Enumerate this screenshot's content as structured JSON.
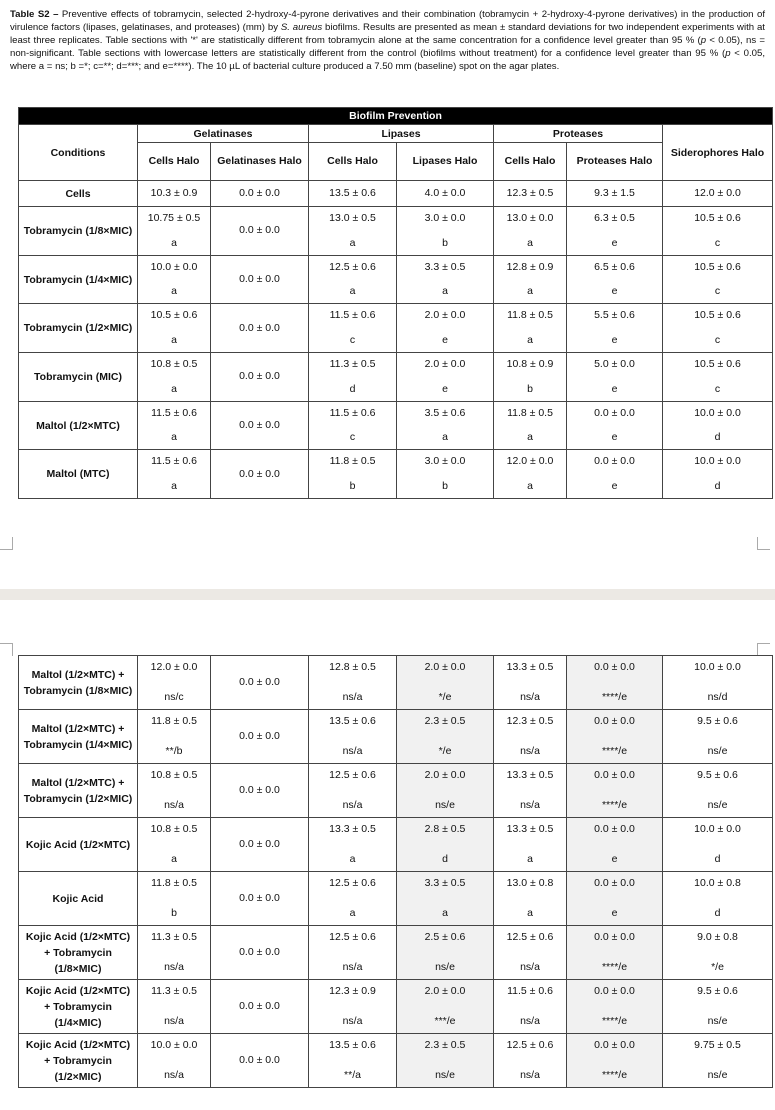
{
  "caption": {
    "label": "Table S2 –",
    "parts": [
      " Preventive effects of tobramycin, selected 2-hydroxy-4-pyrone derivatives and their combination (tobramycin + 2-hydroxy-4-pyrone derivatives) in the production of virulence factors (lipases, gelatinases, and proteases) (mm) by ",
      "S. aureus",
      " biofilms. Results are presented as mean ± standard deviations for two independent experiments with at least three replicates. Table sections with '*' are statistically different from tobramycin alone at the same concentration for a confidence level greater than 95 % (",
      "p",
      " < 0.05), ns = non-significant. Table sections with lowercase letters are statistically different from the control (biofilms without treatment) for a confidence level greater than 95 % (",
      "p",
      " < 0.05, where a = ns; b =*; c=**; d=***; and e=****). The 10 µL of bacterial culture produced a 7.50 mm (baseline) spot on the agar plates."
    ]
  },
  "header": {
    "title": "Biofilm Prevention",
    "conditions": "Conditions",
    "groups": [
      "Gelatinases",
      "Lipases",
      "Proteases"
    ],
    "subcolumns": [
      "Cells Halo",
      "Gelatinases Halo",
      "Cells Halo",
      "Lipases Halo",
      "Cells Halo",
      "Proteases Halo"
    ],
    "siderophores": "Siderophores Halo"
  },
  "tables": [
    {
      "rows": [
        {
          "condition": "Cells",
          "cells": [
            {
              "value": "10.3 ± 0.9"
            },
            {
              "value": "0.0 ± 0.0"
            },
            {
              "value": "13.5 ± 0.6"
            },
            {
              "value": "4.0 ± 0.0"
            },
            {
              "value": "12.3 ± 0.5"
            },
            {
              "value": "9.3 ± 1.5"
            },
            {
              "value": "12.0 ± 0.0"
            }
          ]
        },
        {
          "condition": "Tobramycin (1/8×MIC)",
          "cells": [
            {
              "value": "10.75 ± 0.5",
              "note": "a"
            },
            {
              "value": "0.0 ± 0.0"
            },
            {
              "value": "13.0 ± 0.5",
              "note": "a"
            },
            {
              "value": "3.0 ± 0.0",
              "note": "b"
            },
            {
              "value": "13.0 ± 0.0",
              "note": "a"
            },
            {
              "value": "6.3 ± 0.5",
              "note": "e"
            },
            {
              "value": "10.5 ± 0.6",
              "note": "c"
            }
          ]
        },
        {
          "condition": "Tobramycin (1/4×MIC)",
          "cells": [
            {
              "value": "10.0 ± 0.0",
              "note": "a"
            },
            {
              "value": "0.0 ± 0.0"
            },
            {
              "value": "12.5 ± 0.6",
              "note": "a"
            },
            {
              "value": "3.3 ± 0.5",
              "note": "a"
            },
            {
              "value": "12.8 ± 0.9",
              "note": "a"
            },
            {
              "value": "6.5 ± 0.6",
              "note": "e"
            },
            {
              "value": "10.5 ± 0.6",
              "note": "c"
            }
          ]
        },
        {
          "condition": "Tobramycin (1/2×MIC)",
          "cells": [
            {
              "value": "10.5 ± 0.6",
              "note": "a"
            },
            {
              "value": "0.0 ± 0.0"
            },
            {
              "value": "11.5 ± 0.6",
              "note": "c"
            },
            {
              "value": "2.0 ± 0.0",
              "note": "e"
            },
            {
              "value": "11.8 ± 0.5",
              "note": "a"
            },
            {
              "value": "5.5 ± 0.6",
              "note": "e"
            },
            {
              "value": "10.5 ± 0.6",
              "note": "c"
            }
          ]
        },
        {
          "condition": "Tobramycin (MIC)",
          "cells": [
            {
              "value": "10.8 ± 0.5",
              "note": "a"
            },
            {
              "value": "0.0 ± 0.0"
            },
            {
              "value": "11.3 ± 0.5",
              "note": "d"
            },
            {
              "value": "2.0 ± 0.0",
              "note": "e"
            },
            {
              "value": "10.8 ± 0.9",
              "note": "b"
            },
            {
              "value": "5.0 ± 0.0",
              "note": "e"
            },
            {
              "value": "10.5 ± 0.6",
              "note": "c"
            }
          ]
        },
        {
          "condition": "Maltol (1/2×MTC)",
          "cells": [
            {
              "value": "11.5 ± 0.6",
              "note": "a"
            },
            {
              "value": "0.0 ± 0.0"
            },
            {
              "value": "11.5 ± 0.6",
              "note": "c"
            },
            {
              "value": "3.5 ± 0.6",
              "note": "a"
            },
            {
              "value": "11.8 ± 0.5",
              "note": "a"
            },
            {
              "value": "0.0 ± 0.0",
              "note": "e"
            },
            {
              "value": "10.0 ± 0.0",
              "note": "d"
            }
          ]
        },
        {
          "condition": "Maltol (MTC)",
          "cells": [
            {
              "value": "11.5 ± 0.6",
              "note": "a"
            },
            {
              "value": "0.0 ± 0.0"
            },
            {
              "value": "11.8 ± 0.5",
              "note": "b"
            },
            {
              "value": "3.0 ± 0.0",
              "note": "b"
            },
            {
              "value": "12.0 ± 0.0",
              "note": "a"
            },
            {
              "value": "0.0 ± 0.0",
              "note": "e"
            },
            {
              "value": "10.0 ± 0.0",
              "note": "d"
            }
          ]
        }
      ]
    },
    {
      "rows": [
        {
          "condition": "Maltol (1/2×MTC) + Tobramycin (1/8×MIC)",
          "cells": [
            {
              "value": "12.0 ± 0.0",
              "note": "ns/c"
            },
            {
              "value": "0.0 ± 0.0"
            },
            {
              "value": "12.8 ± 0.5",
              "note": "ns/a"
            },
            {
              "value": "2.0 ± 0.0",
              "note": "*/e"
            },
            {
              "value": "13.3 ± 0.5",
              "note": "ns/a"
            },
            {
              "value": "0.0 ± 0.0",
              "note": "****/e"
            },
            {
              "value": "10.0 ± 0.0",
              "note": "ns/d"
            }
          ]
        },
        {
          "condition": "Maltol (1/2×MTC) + Tobramycin (1/4×MIC)",
          "cells": [
            {
              "value": "11.8 ± 0.5",
              "note": "**/b"
            },
            {
              "value": "0.0 ± 0.0"
            },
            {
              "value": "13.5 ± 0.6",
              "note": "ns/a"
            },
            {
              "value": "2.3 ± 0.5",
              "note": "*/e"
            },
            {
              "value": "12.3 ± 0.5",
              "note": "ns/a"
            },
            {
              "value": "0.0 ± 0.0",
              "note": "****/e"
            },
            {
              "value": "9.5 ± 0.6",
              "note": "ns/e"
            }
          ]
        },
        {
          "condition": "Maltol (1/2×MTC) + Tobramycin (1/2×MIC)",
          "cells": [
            {
              "value": "10.8 ± 0.5",
              "note": "ns/a"
            },
            {
              "value": "0.0 ± 0.0"
            },
            {
              "value": "12.5 ± 0.6",
              "note": "ns/a"
            },
            {
              "value": "2.0 ± 0.0",
              "note": "ns/e"
            },
            {
              "value": "13.3 ± 0.5",
              "note": "ns/a"
            },
            {
              "value": "0.0 ± 0.0",
              "note": "****/e"
            },
            {
              "value": "9.5 ± 0.6",
              "note": "ns/e"
            }
          ]
        },
        {
          "condition": "Kojic Acid (1/2×MTC)",
          "cells": [
            {
              "value": "10.8 ± 0.5",
              "note": "a"
            },
            {
              "value": "0.0 ± 0.0"
            },
            {
              "value": "13.3 ± 0.5",
              "note": "a"
            },
            {
              "value": "2.8 ± 0.5",
              "note": "d"
            },
            {
              "value": "13.3 ± 0.5",
              "note": "a"
            },
            {
              "value": "0.0 ± 0.0",
              "note": "e"
            },
            {
              "value": "10.0 ± 0.0",
              "note": "d"
            }
          ]
        },
        {
          "condition": "Kojic Acid",
          "cells": [
            {
              "value": "11.8 ± 0.5",
              "note": "b"
            },
            {
              "value": "0.0 ± 0.0"
            },
            {
              "value": "12.5 ± 0.6",
              "note": "a"
            },
            {
              "value": "3.3 ± 0.5",
              "note": "a"
            },
            {
              "value": "13.0 ± 0.8",
              "note": "a"
            },
            {
              "value": "0.0 ± 0.0",
              "note": "e"
            },
            {
              "value": "10.0 ± 0.8",
              "note": "d"
            }
          ]
        },
        {
          "condition": "Kojic Acid (1/2×MTC) + Tobramycin (1/8×MIC)",
          "cells": [
            {
              "value": "11.3 ± 0.5",
              "note": "ns/a"
            },
            {
              "value": "0.0 ± 0.0"
            },
            {
              "value": "12.5 ± 0.6",
              "note": "ns/a"
            },
            {
              "value": "2.5 ± 0.6",
              "note": "ns/e"
            },
            {
              "value": "12.5 ± 0.6",
              "note": "ns/a"
            },
            {
              "value": "0.0 ± 0.0",
              "note": "****/e"
            },
            {
              "value": "9.0 ± 0.8",
              "note": "*/e"
            }
          ]
        },
        {
          "condition": "Kojic Acid (1/2×MTC) + Tobramycin (1/4×MIC)",
          "cells": [
            {
              "value": "11.3 ± 0.5",
              "note": "ns/a"
            },
            {
              "value": "0.0 ± 0.0"
            },
            {
              "value": "12.3 ± 0.9",
              "note": "ns/a"
            },
            {
              "value": "2.0 ± 0.0",
              "note": "***/e"
            },
            {
              "value": "11.5 ± 0.6",
              "note": "ns/a"
            },
            {
              "value": "0.0 ± 0.0",
              "note": "****/e"
            },
            {
              "value": "9.5 ± 0.6",
              "note": "ns/e"
            }
          ]
        },
        {
          "condition": "Kojic Acid (1/2×MTC) + Tobramycin (1/2×MIC)",
          "cells": [
            {
              "value": "10.0 ± 0.0",
              "note": "ns/a"
            },
            {
              "value": "0.0 ± 0.0"
            },
            {
              "value": "13.5 ± 0.6",
              "note": "**/a"
            },
            {
              "value": "2.3 ± 0.5",
              "note": "ns/e"
            },
            {
              "value": "12.5 ± 0.6",
              "note": "ns/a"
            },
            {
              "value": "0.0 ± 0.0",
              "note": "****/e"
            },
            {
              "value": "9.75 ± 0.5",
              "note": "ns/e"
            }
          ]
        }
      ]
    }
  ]
}
